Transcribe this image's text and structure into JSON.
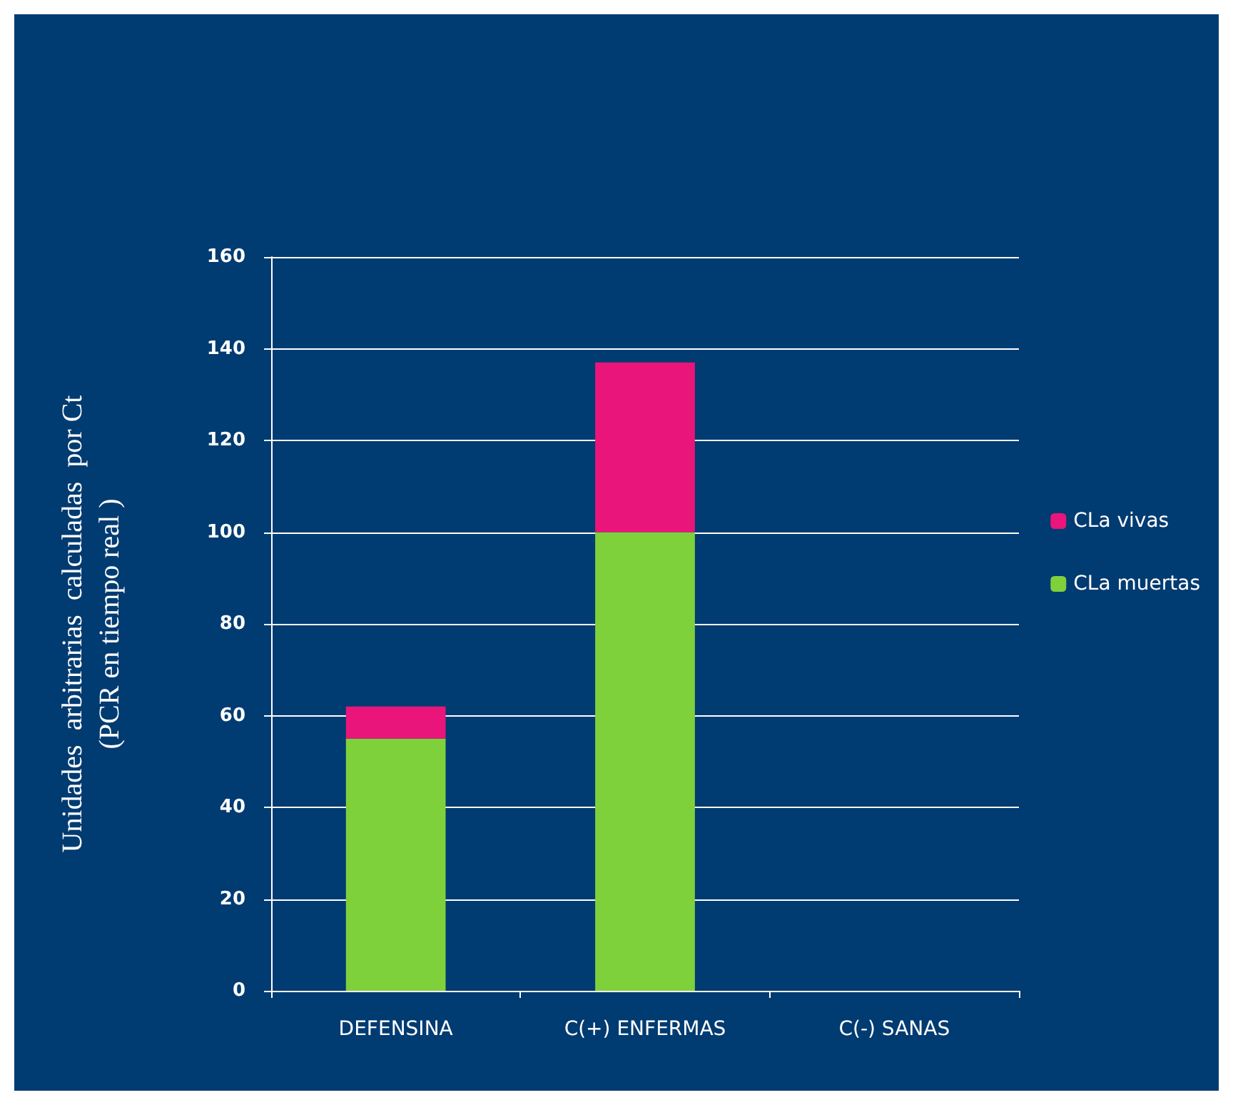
{
  "chart_data": {
    "type": "bar",
    "stacked": true,
    "ylabel": "Unidades  arbitrarias  calculadas  por Ct\n(PCR en tiempo real )",
    "categories": [
      "DEFENSINA",
      "C(+) ENFERMAS",
      "C(-) SANAS"
    ],
    "series": [
      {
        "name": "CLa muertas",
        "color": "#7fd13b",
        "values": [
          55,
          100,
          0
        ]
      },
      {
        "name": "CLa vivas",
        "color": "#ea157a",
        "values": [
          7,
          37,
          0
        ]
      }
    ],
    "ylim": [
      0,
      160
    ],
    "yticks": [
      0,
      20,
      40,
      60,
      80,
      100,
      120,
      140,
      160
    ],
    "grid": "y",
    "legend": "right"
  }
}
